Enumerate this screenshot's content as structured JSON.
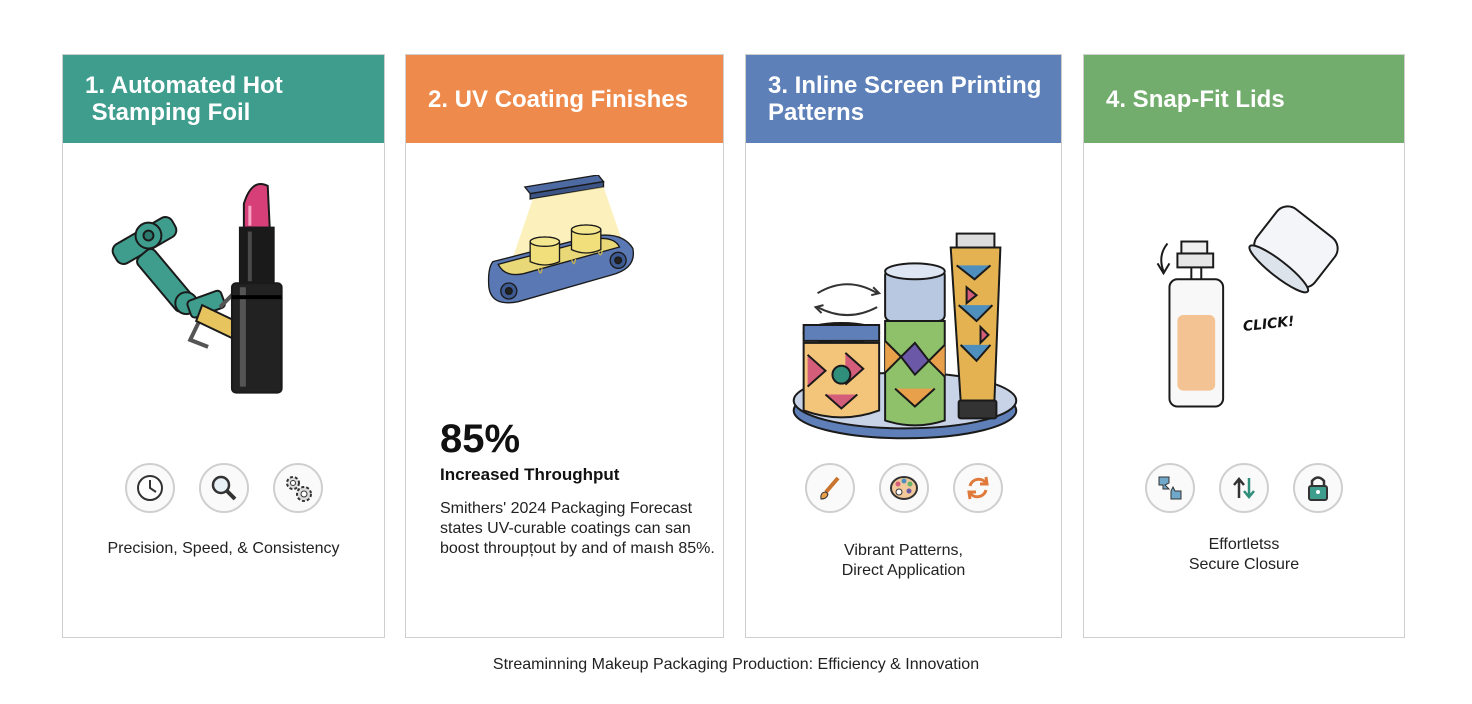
{
  "colors": {
    "teal": "#3f9d8e",
    "orange": "#ee8a4c",
    "blue": "#5d80b8",
    "green": "#72ad6e"
  },
  "cards": [
    {
      "title": "1. Automated Hot\n Stamping Foil",
      "icons": [
        "clock-icon",
        "magnifier-icon",
        "gears-icon"
      ],
      "caption": "Precision, Speed, & Consistency"
    },
    {
      "title": "2. UV Coating Finishes",
      "stat_value": "85%",
      "stat_label": "Increased Throughput",
      "stat_text": "Smithers' 2024 Packaging Forecast states UV-curable coatings can san boost throupțout by and of maısh 85%."
    },
    {
      "title": "3. Inline Screen Printing\nPatterns",
      "icons": [
        "brush-icon",
        "palette-icon",
        "cycle-icon"
      ],
      "caption": "Vibrant Patterns,\nDirect Application"
    },
    {
      "title": "4. Snap-Fit Lids",
      "click_label": "CLICK!",
      "icons": [
        "puzzle-icon",
        "up-down-arrows-icon",
        "lock-icon"
      ],
      "caption": "Effortletss\nSecure Closure"
    }
  ],
  "footer": "Streaminning Makeup Packaging Production: Efficiency & Innovation"
}
